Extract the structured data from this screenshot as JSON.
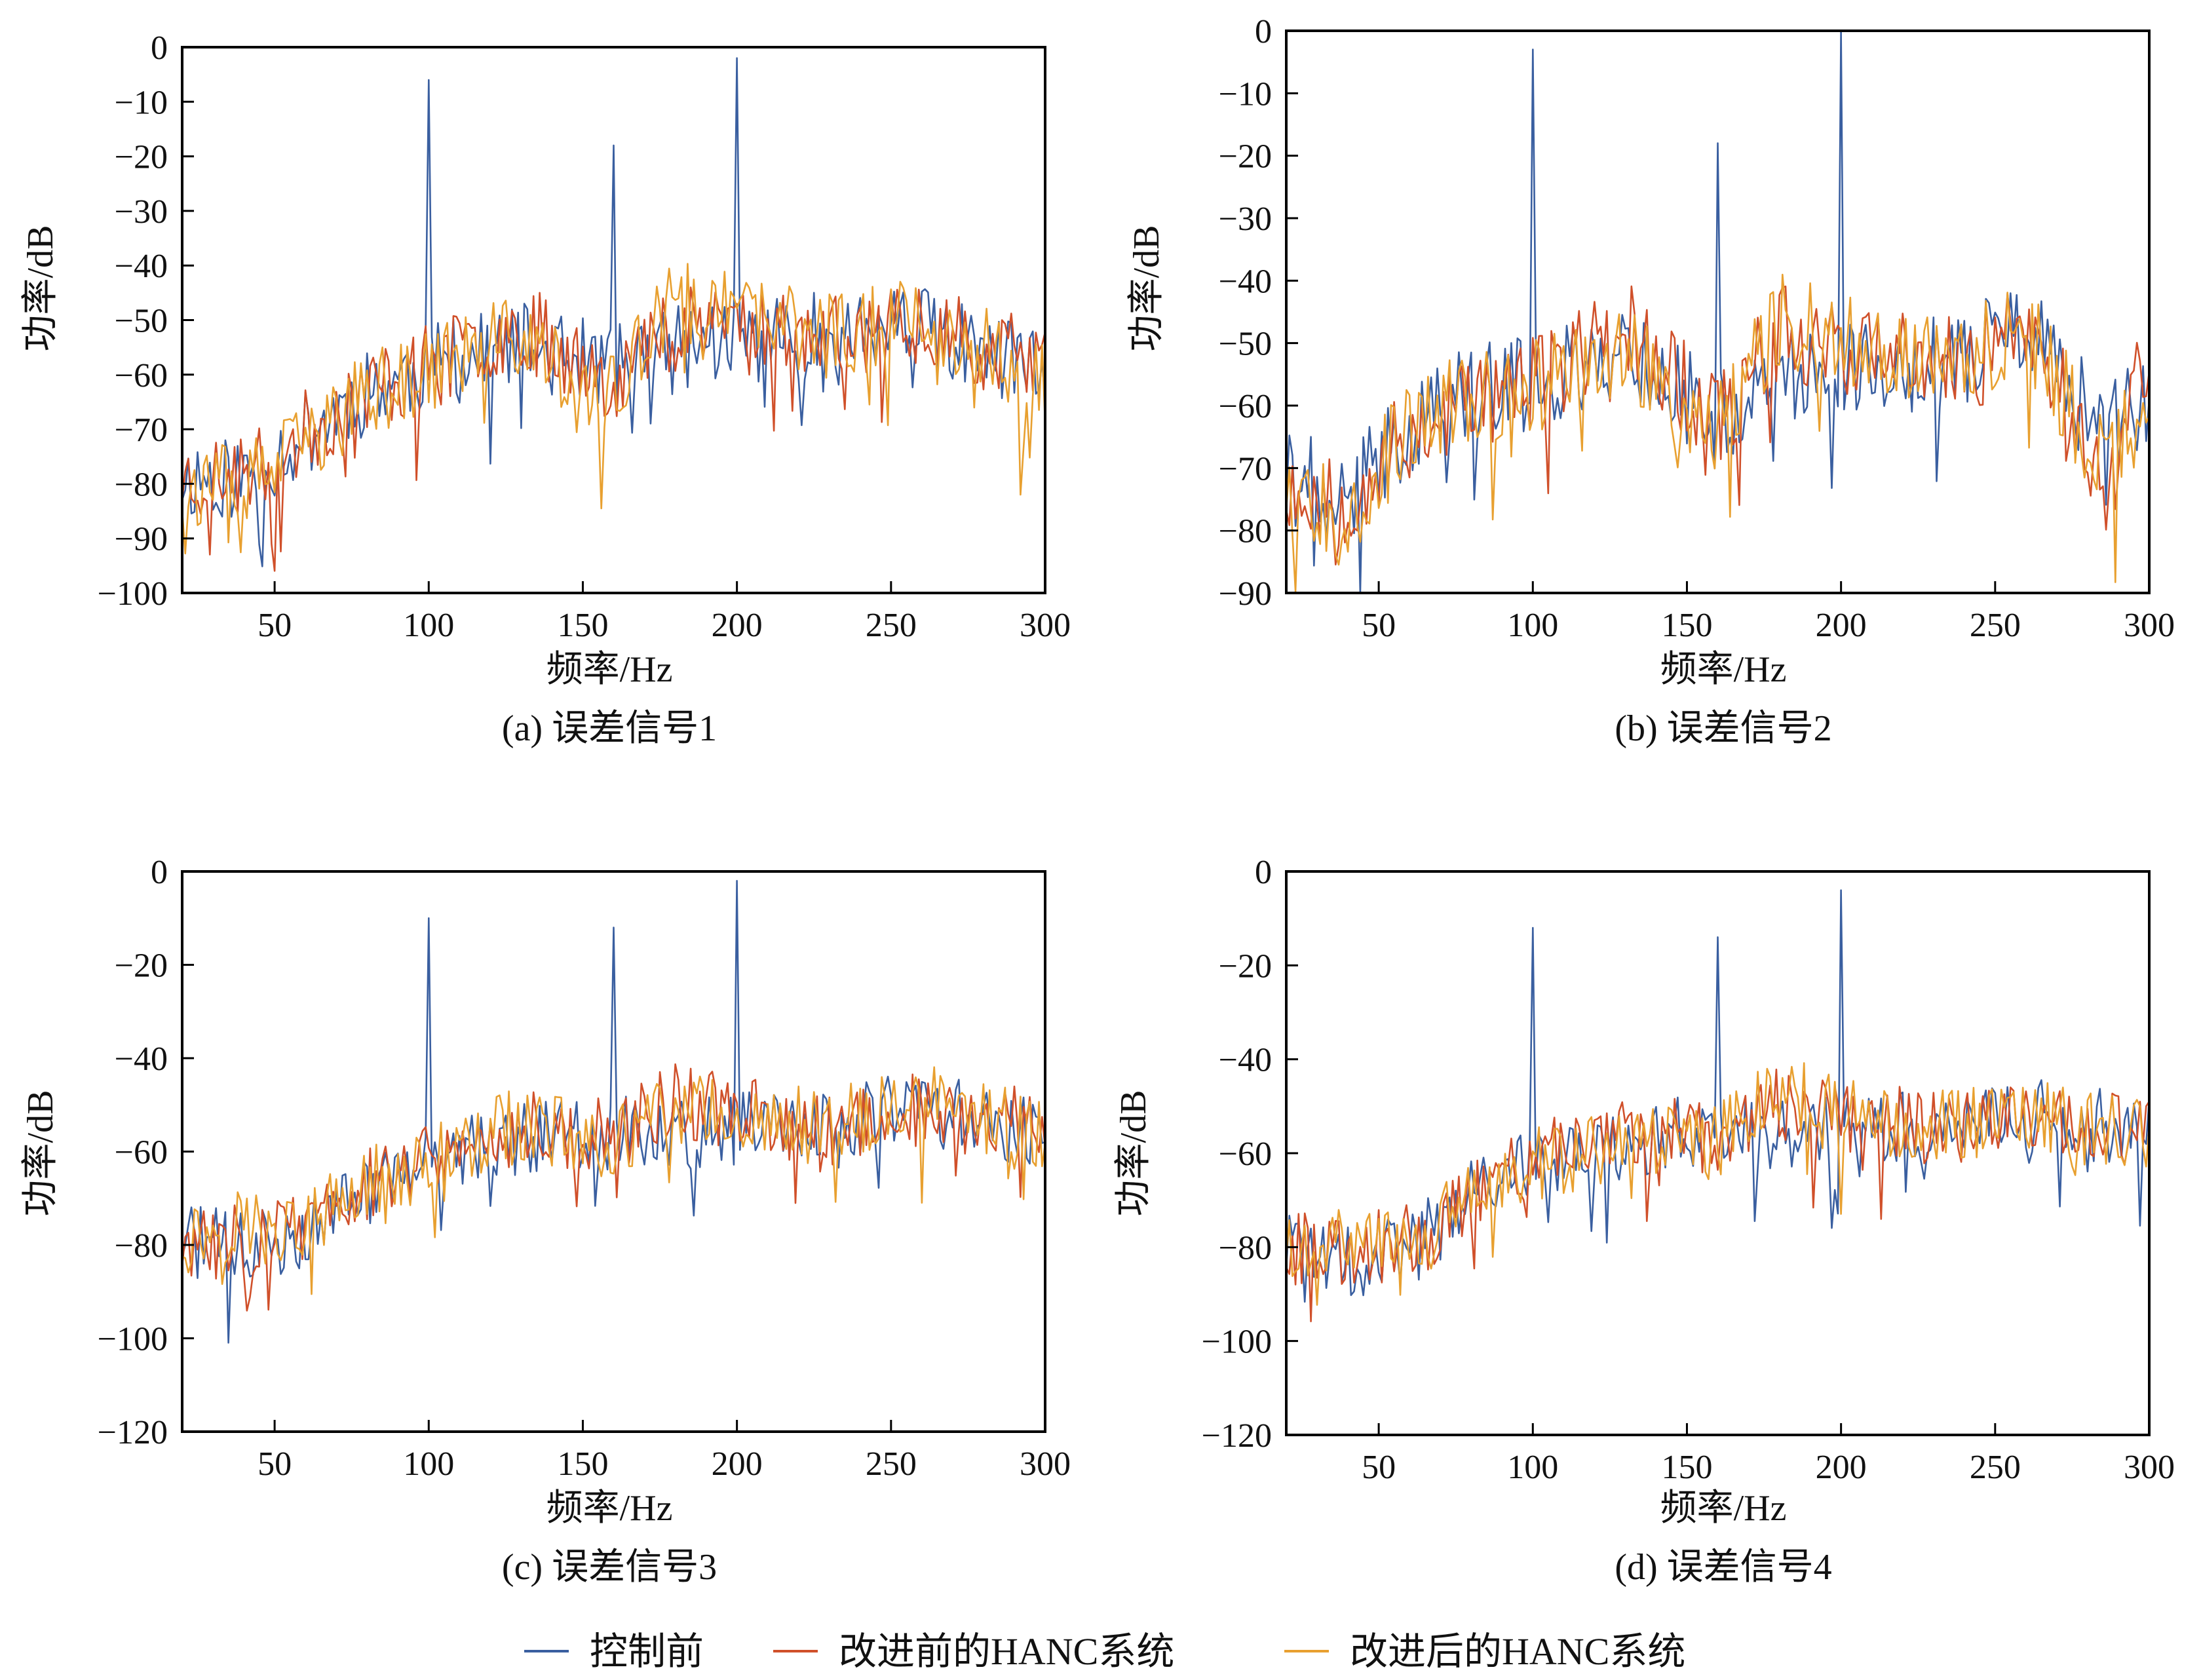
{
  "figure": {
    "legend": [
      {
        "label": "控制前",
        "color": "#3a5fa0"
      },
      {
        "label": "改进前的HANC系统",
        "color": "#d0502a"
      },
      {
        "label": "改进后的HANC系统",
        "color": "#e8a030"
      }
    ]
  },
  "chart_data": [
    {
      "type": "line",
      "caption": "(a) 误差信号1",
      "xlabel": "频率/Hz",
      "ylabel": "功率/dB",
      "xlim": [
        20,
        300
      ],
      "ylim": [
        -100,
        0
      ],
      "xticks": [
        50,
        100,
        150,
        200,
        250,
        300
      ],
      "yticks": [
        0,
        -10,
        -20,
        -30,
        -40,
        -50,
        -60,
        -70,
        -80,
        -90,
        -100
      ],
      "series": [
        {
          "name": "控制前",
          "color": "#3a5fa0",
          "seed": 11,
          "spikes": [
            [
              100,
              -6
            ],
            [
              160,
              -18
            ],
            [
              200,
              -2
            ]
          ],
          "baseline": [
            [
              20,
              -78
            ],
            [
              40,
              -78
            ],
            [
              60,
              -70
            ],
            [
              80,
              -62
            ],
            [
              100,
              -58
            ],
            [
              130,
              -54
            ],
            [
              160,
              -58
            ],
            [
              190,
              -53
            ],
            [
              230,
              -52
            ],
            [
              260,
              -51
            ],
            [
              300,
              -60
            ]
          ]
        },
        {
          "name": "改进前的HANC系统",
          "color": "#d0502a",
          "seed": 23,
          "spikes": [],
          "baseline": [
            [
              20,
              -78
            ],
            [
              40,
              -78
            ],
            [
              60,
              -70
            ],
            [
              80,
              -62
            ],
            [
              100,
              -58
            ],
            [
              130,
              -50
            ],
            [
              160,
              -60
            ],
            [
              185,
              -47
            ],
            [
              230,
              -53
            ],
            [
              260,
              -49
            ],
            [
              300,
              -58
            ]
          ]
        },
        {
          "name": "改进后的HANC系统",
          "color": "#e8a030",
          "seed": 37,
          "spikes": [],
          "baseline": [
            [
              20,
              -80
            ],
            [
              40,
              -80
            ],
            [
              60,
              -72
            ],
            [
              80,
              -63
            ],
            [
              100,
              -58
            ],
            [
              130,
              -52
            ],
            [
              155,
              -66
            ],
            [
              180,
              -46
            ],
            [
              230,
              -52
            ],
            [
              260,
              -48
            ],
            [
              300,
              -61
            ]
          ]
        }
      ]
    },
    {
      "type": "line",
      "caption": "(b) 误差信号2",
      "xlabel": "频率/Hz",
      "ylabel": "功率/dB",
      "xlim": [
        20,
        300
      ],
      "ylim": [
        -90,
        0
      ],
      "xticks": [
        50,
        100,
        150,
        200,
        250,
        300
      ],
      "yticks": [
        0,
        -10,
        -20,
        -30,
        -40,
        -50,
        -60,
        -70,
        -80,
        -90
      ],
      "series": [
        {
          "name": "控制前",
          "color": "#3a5fa0",
          "seed": 41,
          "spikes": [
            [
              100,
              -3
            ],
            [
              160,
              -18
            ],
            [
              200,
              0
            ]
          ],
          "baseline": [
            [
              20,
              -70
            ],
            [
              40,
              -75
            ],
            [
              60,
              -62
            ],
            [
              80,
              -57
            ],
            [
              100,
              -56
            ],
            [
              130,
              -50
            ],
            [
              160,
              -62
            ],
            [
              190,
              -52
            ],
            [
              230,
              -53
            ],
            [
              260,
              -47
            ],
            [
              285,
              -64
            ],
            [
              300,
              -58
            ]
          ]
        },
        {
          "name": "改进前的HANC系统",
          "color": "#d0502a",
          "seed": 53,
          "spikes": [],
          "baseline": [
            [
              20,
              -72
            ],
            [
              40,
              -74
            ],
            [
              60,
              -64
            ],
            [
              80,
              -58
            ],
            [
              100,
              -56
            ],
            [
              130,
              -46
            ],
            [
              160,
              -62
            ],
            [
              180,
              -47
            ],
            [
              230,
              -53
            ],
            [
              260,
              -46
            ],
            [
              285,
              -70
            ],
            [
              300,
              -52
            ]
          ]
        },
        {
          "name": "改进后的HANC系统",
          "color": "#e8a030",
          "seed": 67,
          "spikes": [],
          "baseline": [
            [
              20,
              -72
            ],
            [
              40,
              -76
            ],
            [
              60,
              -63
            ],
            [
              80,
              -58
            ],
            [
              100,
              -56
            ],
            [
              130,
              -50
            ],
            [
              155,
              -66
            ],
            [
              180,
              -45
            ],
            [
              230,
              -52
            ],
            [
              260,
              -47
            ],
            [
              285,
              -68
            ],
            [
              300,
              -60
            ]
          ]
        }
      ]
    },
    {
      "type": "line",
      "caption": "(c) 误差信号3",
      "xlabel": "频率/Hz",
      "ylabel": "功率/dB",
      "xlim": [
        20,
        300
      ],
      "ylim": [
        -120,
        0
      ],
      "xticks": [
        50,
        100,
        150,
        200,
        250,
        300
      ],
      "yticks": [
        0,
        -20,
        -40,
        -60,
        -80,
        -100,
        -120
      ],
      "series": [
        {
          "name": "控制前",
          "color": "#3a5fa0",
          "seed": 71,
          "spikes": [
            [
              100,
              -10
            ],
            [
              160,
              -12
            ],
            [
              200,
              -2
            ]
          ],
          "baseline": [
            [
              20,
              -78
            ],
            [
              40,
              -80
            ],
            [
              60,
              -76
            ],
            [
              80,
              -67
            ],
            [
              100,
              -60
            ],
            [
              130,
              -56
            ],
            [
              160,
              -55
            ],
            [
              190,
              -55
            ],
            [
              230,
              -53
            ],
            [
              260,
              -50
            ],
            [
              300,
              -55
            ]
          ]
        },
        {
          "name": "改进前的HANC系统",
          "color": "#d0502a",
          "seed": 83,
          "spikes": [],
          "baseline": [
            [
              20,
              -80
            ],
            [
              40,
              -78
            ],
            [
              60,
              -75
            ],
            [
              80,
              -66
            ],
            [
              100,
              -60
            ],
            [
              130,
              -54
            ],
            [
              160,
              -56
            ],
            [
              180,
              -48
            ],
            [
              230,
              -55
            ],
            [
              260,
              -50
            ],
            [
              300,
              -54
            ]
          ]
        },
        {
          "name": "改进后的HANC系统",
          "color": "#e8a030",
          "seed": 97,
          "spikes": [],
          "baseline": [
            [
              20,
              -78
            ],
            [
              40,
              -74
            ],
            [
              60,
              -76
            ],
            [
              80,
              -66
            ],
            [
              100,
              -62
            ],
            [
              130,
              -53
            ],
            [
              160,
              -58
            ],
            [
              180,
              -50
            ],
            [
              230,
              -54
            ],
            [
              260,
              -48
            ],
            [
              300,
              -56
            ]
          ]
        }
      ]
    },
    {
      "type": "line",
      "caption": "(d) 误差信号4",
      "xlabel": "频率/Hz",
      "ylabel": "功率/dB",
      "xlim": [
        20,
        300
      ],
      "ylim": [
        -120,
        0
      ],
      "xticks": [
        50,
        100,
        150,
        200,
        250,
        300
      ],
      "yticks": [
        0,
        -20,
        -40,
        -60,
        -80,
        -100,
        -120
      ],
      "series": [
        {
          "name": "控制前",
          "color": "#3a5fa0",
          "seed": 101,
          "spikes": [
            [
              100,
              -12
            ],
            [
              160,
              -14
            ],
            [
              200,
              -4
            ]
          ],
          "baseline": [
            [
              20,
              -80
            ],
            [
              40,
              -82
            ],
            [
              60,
              -80
            ],
            [
              80,
              -68
            ],
            [
              100,
              -61
            ],
            [
              130,
              -57
            ],
            [
              160,
              -54
            ],
            [
              190,
              -55
            ],
            [
              230,
              -53
            ],
            [
              260,
              -51
            ],
            [
              300,
              -55
            ]
          ]
        },
        {
          "name": "改进前的HANC系统",
          "color": "#d0502a",
          "seed": 113,
          "spikes": [],
          "baseline": [
            [
              20,
              -80
            ],
            [
              40,
              -80
            ],
            [
              60,
              -78
            ],
            [
              80,
              -68
            ],
            [
              100,
              -60
            ],
            [
              130,
              -55
            ],
            [
              160,
              -56
            ],
            [
              180,
              -49
            ],
            [
              230,
              -54
            ],
            [
              260,
              -51
            ],
            [
              300,
              -55
            ]
          ]
        },
        {
          "name": "改进后的HANC系统",
          "color": "#e8a030",
          "seed": 127,
          "spikes": [],
          "baseline": [
            [
              20,
              -78
            ],
            [
              40,
              -76
            ],
            [
              60,
              -80
            ],
            [
              80,
              -68
            ],
            [
              100,
              -62
            ],
            [
              130,
              -56
            ],
            [
              160,
              -57
            ],
            [
              175,
              -46
            ],
            [
              230,
              -54
            ],
            [
              260,
              -51
            ],
            [
              300,
              -56
            ]
          ]
        }
      ]
    }
  ]
}
